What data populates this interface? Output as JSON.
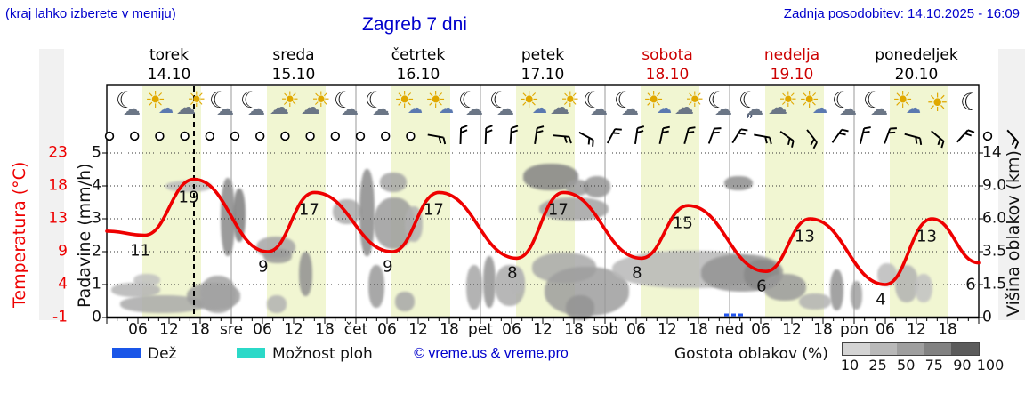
{
  "header": {
    "hint": "(kraj lahko izberete v meniju)",
    "title": "Zagreb 7 dni",
    "updated": "Zadnja posodobitev: 14.10.2025 - 16:09"
  },
  "days": [
    {
      "name": "torek",
      "date": "14.10",
      "color": "#000000",
      "short": ""
    },
    {
      "name": "sreda",
      "date": "15.10",
      "color": "#000000",
      "short": "sre"
    },
    {
      "name": "četrtek",
      "date": "16.10",
      "color": "#000000",
      "short": "čet"
    },
    {
      "name": "petek",
      "date": "17.10",
      "color": "#000000",
      "short": "pet"
    },
    {
      "name": "sobota",
      "date": "18.10",
      "color": "#cc0000",
      "short": "sob"
    },
    {
      "name": "nedelja",
      "date": "19.10",
      "color": "#cc0000",
      "short": "ned"
    },
    {
      "name": "ponedeljek",
      "date": "20.10",
      "color": "#000000",
      "short": "pon"
    }
  ],
  "axes": {
    "temp": {
      "title": "Temperatura (°C)",
      "color": "#ee0000",
      "ticks": [
        "23",
        "18",
        "13",
        "9",
        "4",
        "-1"
      ]
    },
    "precip": {
      "title": "Padavine (mm/h)",
      "ticks": [
        "5",
        "4",
        "3",
        "2",
        "1",
        "0"
      ]
    },
    "cloud": {
      "title": "Višina oblakov (km)",
      "ticks": [
        "14",
        "9.0",
        "6.0",
        "3.5",
        "1.5",
        "0"
      ]
    },
    "hours": [
      "06",
      "12",
      "18"
    ]
  },
  "chart_data": {
    "type": "line",
    "title": "Zagreb 7 dni",
    "x_axis": "time, hours from 14.10 00:00 (7 days)",
    "y_axes": {
      "temperature_C": [
        -1,
        23
      ],
      "precip_mm_h": [
        0,
        5
      ],
      "cloud_height_km": [
        0,
        14
      ]
    },
    "temp_series": {
      "name": "Temperatura",
      "color": "#ee0000",
      "points": [
        {
          "h": 0,
          "t": 11.5
        },
        {
          "h": 7.3,
          "t": 11,
          "ext": "min",
          "label": "11"
        },
        {
          "h": 16.8,
          "t": 19,
          "ext": "max",
          "label": "19"
        },
        {
          "h": 31,
          "t": 9,
          "ext": "min",
          "label": "9"
        },
        {
          "h": 40,
          "t": 17,
          "ext": "max",
          "label": "17"
        },
        {
          "h": 55,
          "t": 9,
          "ext": "min",
          "label": "9"
        },
        {
          "h": 64,
          "t": 17,
          "ext": "max",
          "label": "17"
        },
        {
          "h": 79,
          "t": 8,
          "ext": "min",
          "label": "8"
        },
        {
          "h": 88,
          "t": 17,
          "ext": "max",
          "label": "17"
        },
        {
          "h": 103,
          "t": 8,
          "ext": "min",
          "label": "8"
        },
        {
          "h": 112,
          "t": 15,
          "ext": "max",
          "label": "15"
        },
        {
          "h": 127,
          "t": 6,
          "ext": "min",
          "label": "6"
        },
        {
          "h": 135.5,
          "t": 13,
          "ext": "max",
          "label": "13"
        },
        {
          "h": 150,
          "t": 4,
          "ext": "min",
          "label": "4"
        },
        {
          "h": 159,
          "t": 13,
          "ext": "max",
          "label": "13"
        },
        {
          "h": 168,
          "t": 7.3
        }
      ],
      "edge_label": "6"
    },
    "current_time_hour": 16.8,
    "rain_marks": [
      {
        "day": "nedelja",
        "hour": 0.5
      }
    ]
  },
  "icons": [
    "moon-cloud",
    "sun-cloud",
    "cloud-sun",
    "moon-cloud",
    "moon-cloud",
    "cloud-sun",
    "cloud-sun",
    "moon-cloud",
    "moon-cloud",
    "sun-cloud",
    "sun-cloud",
    "moon-cloud",
    "moon-cloud",
    "sun-cloud",
    "cloud-sun",
    "moon-cloud",
    "moon-cloud",
    "sun-cloud",
    "cloud-sun",
    "moon-cloud",
    "moon-cloud-rain",
    "cloud-sun",
    "sun-cloud",
    "moon-cloud",
    "moon-cloud",
    "sun-cloud",
    "sun",
    "moon"
  ],
  "wind": [
    "c",
    "c",
    "c",
    "c",
    "c",
    "c",
    "c",
    "c",
    "c",
    "c",
    "c",
    "c",
    "c",
    100,
    2,
    2,
    4,
    8,
    95,
    118,
    28,
    8,
    12,
    15,
    20,
    32,
    100,
    126,
    142,
    36,
    14,
    20,
    105,
    130,
    42,
    "c",
    138,
    "c",
    6
  ],
  "clouds": [
    [
      125,
      318,
      55,
      16,
      "#b4b4b4"
    ],
    [
      135,
      332,
      95,
      20,
      "#aaaaaa"
    ],
    [
      150,
      308,
      30,
      14,
      "#c0c0c0"
    ],
    [
      210,
      318,
      60,
      30,
      "#9e9e9e"
    ],
    [
      225,
      310,
      40,
      42,
      "#a2a2a2"
    ],
    [
      248,
      200,
      16,
      88,
      "#8a8a8a"
    ],
    [
      262,
      212,
      14,
      60,
      "#7d7d7d"
    ],
    [
      186,
      203,
      52,
      13,
      "#bbbbbb"
    ],
    [
      288,
      266,
      44,
      24,
      "#a6a6a6"
    ],
    [
      296,
      280,
      32,
      16,
      "#999999"
    ],
    [
      336,
      283,
      15,
      50,
      "#919191"
    ],
    [
      374,
      224,
      32,
      28,
      "#ababab"
    ],
    [
      300,
      332,
      22,
      20,
      "#b2b2b2"
    ],
    [
      404,
      190,
      17,
      98,
      "#8b8b8b"
    ],
    [
      420,
      222,
      46,
      58,
      "#9c9c9c"
    ],
    [
      427,
      194,
      30,
      22,
      "#a5a5a5"
    ],
    [
      414,
      298,
      18,
      48,
      "#9a9a9a"
    ],
    [
      444,
      328,
      22,
      22,
      "#a8a8a8"
    ],
    [
      455,
      232,
      20,
      40,
      "#b0b0b0"
    ],
    [
      524,
      298,
      18,
      50,
      "#a6a6a6"
    ],
    [
      543,
      288,
      14,
      58,
      "#949494"
    ],
    [
      556,
      298,
      34,
      46,
      "#ababab"
    ],
    [
      573,
      300,
      16,
      30,
      "#b6b6b6"
    ],
    [
      588,
      184,
      62,
      30,
      "#848484"
    ],
    [
      636,
      202,
      26,
      18,
      "#9b9b9b"
    ],
    [
      656,
      198,
      30,
      24,
      "#959595"
    ],
    [
      606,
      222,
      78,
      26,
      "#a3a3a3"
    ],
    [
      598,
      284,
      72,
      34,
      "#a9a9a9"
    ],
    [
      612,
      300,
      95,
      55,
      "#9e9e9e"
    ],
    [
      636,
      332,
      32,
      28,
      "#949494"
    ],
    [
      688,
      282,
      175,
      42,
      "#b8b8b8"
    ],
    [
      788,
      286,
      92,
      42,
      "#949494"
    ],
    [
      836,
      292,
      40,
      34,
      "#898989"
    ],
    [
      814,
      198,
      32,
      16,
      "#8e8e8e"
    ],
    [
      858,
      308,
      48,
      30,
      "#9a9a9a"
    ],
    [
      898,
      330,
      36,
      18,
      "#b2b2b2"
    ],
    [
      933,
      303,
      15,
      46,
      "#939393"
    ],
    [
      956,
      316,
      13,
      32,
      "#a0a0a0"
    ],
    [
      986,
      296,
      22,
      26,
      "#bcbcbc"
    ],
    [
      1006,
      298,
      26,
      42,
      "#b2b2b2"
    ],
    [
      1028,
      308,
      20,
      32,
      "#c2c2c2"
    ]
  ],
  "legend": {
    "rain_label": "Dež",
    "rain_color": "#1a56e8",
    "showers_label": "Možnost ploh",
    "showers_color": "#2bd9c8",
    "copyright": "© vreme.us & vreme.pro",
    "cloud_density_label": "Gostota oblakov (%)",
    "gradient_labels": [
      "10",
      "25",
      "50",
      "75",
      "90",
      "100"
    ],
    "gradient_colors": [
      "#d4d4d4",
      "#b9b9b9",
      "#9f9f9f",
      "#828282",
      "#5c5c5c"
    ]
  }
}
